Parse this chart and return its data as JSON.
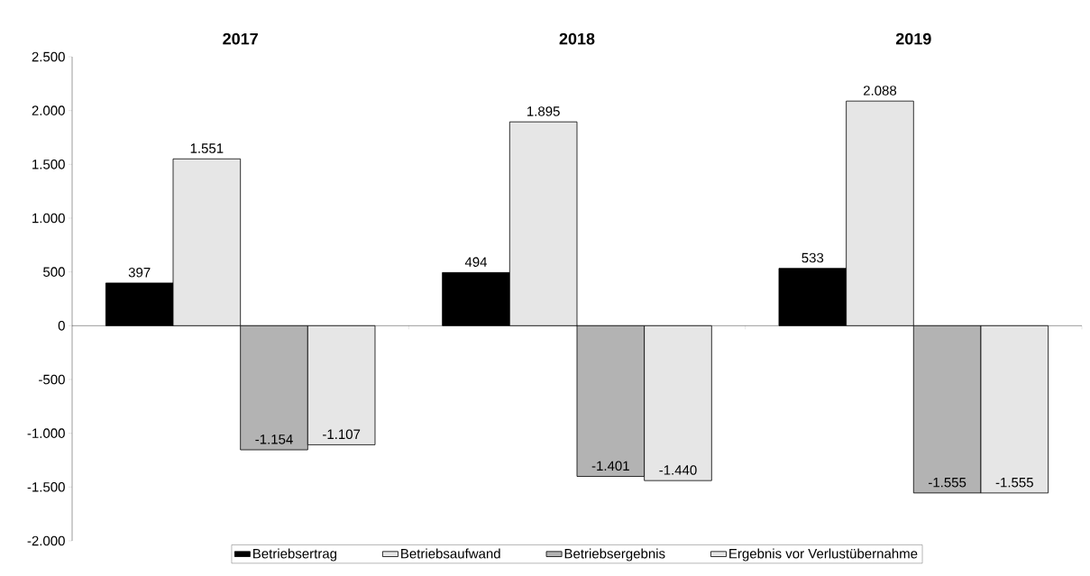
{
  "chart_data": {
    "type": "bar",
    "categories": [
      "2017",
      "2018",
      "2019"
    ],
    "series": [
      {
        "name": "Betriebsertrag",
        "color": "#000000",
        "values": [
          397,
          494,
          533
        ],
        "value_labels": [
          "397",
          "494",
          "533"
        ]
      },
      {
        "name": "Betriebsaufwand",
        "color": "#e6e6e6",
        "values": [
          1551,
          1895,
          2088
        ],
        "value_labels": [
          "1.551",
          "1.895",
          "2.088"
        ]
      },
      {
        "name": "Betriebsergebnis",
        "color": "#b3b3b3",
        "values": [
          -1154,
          -1401,
          -1555
        ],
        "value_labels": [
          "-1.154",
          "-1.401",
          "-1.555"
        ]
      },
      {
        "name": "Ergebnis vor Verlustübernahme",
        "color": "#e6e6e6",
        "values": [
          -1107,
          -1440,
          -1555
        ],
        "value_labels": [
          "-1.107",
          "-1.440",
          "-1.555"
        ]
      }
    ],
    "ylim": [
      -2000,
      2500
    ],
    "yticks": [
      {
        "value": 2500,
        "label": "2.500"
      },
      {
        "value": 2000,
        "label": "2.000"
      },
      {
        "value": 1500,
        "label": "1.500"
      },
      {
        "value": 1000,
        "label": "1.000"
      },
      {
        "value": 500,
        "label": "500"
      },
      {
        "value": 0,
        "label": "0"
      },
      {
        "value": -500,
        "label": "-500"
      },
      {
        "value": -1000,
        "label": "-1.000"
      },
      {
        "value": -1500,
        "label": "-1.500"
      },
      {
        "value": -2000,
        "label": "-2.000"
      }
    ],
    "legend": "bottom"
  }
}
